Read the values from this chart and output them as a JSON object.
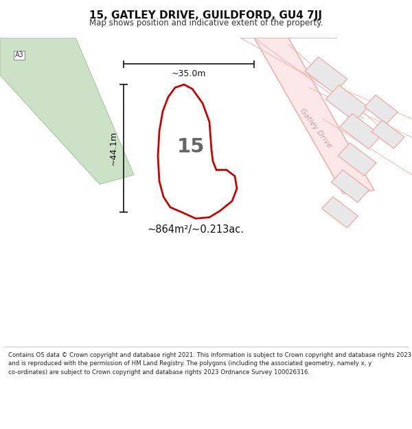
{
  "title": "15, GATLEY DRIVE, GUILDFORD, GU4 7JJ",
  "subtitle": "Map shows position and indicative extent of the property.",
  "footer": "Contains OS data © Crown copyright and database right 2021. This information is subject to Crown copyright and database rights 2023 and is reproduced with the permission of HM Land Registry. The polygons (including the associated geometry, namely x, y co-ordinates) are subject to Crown copyright and database rights 2023 Ordnance Survey 100026316.",
  "bg_color": "#ffffff",
  "road_color": "#f0b0b0",
  "road_fill": "#fce8e8",
  "green_fill": "#cde0c8",
  "green_border": "#a8c8a0",
  "a3_label": "A3",
  "plot_label": "15",
  "plot_color": "#cc0000",
  "dim_color": "#222222",
  "area_text": "~864m²/~0.213ac.",
  "width_text": "~35.0m",
  "height_text": "~44.1m",
  "gatley_drive_label": "Gatley Drive",
  "house_color": "#e8e8e8",
  "house_edge": "#f0a0a0"
}
